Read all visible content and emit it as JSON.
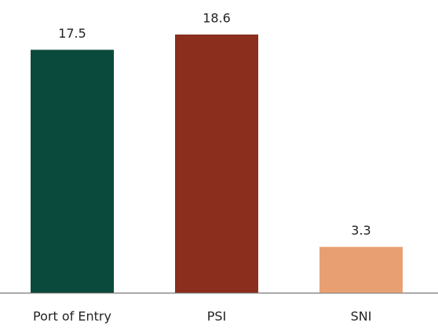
{
  "chart_data": {
    "type": "bar",
    "categories": [
      "Port of Entry",
      "PSI",
      "SNI"
    ],
    "values": [
      17.5,
      18.6,
      3.3
    ],
    "colors": [
      "#0a4a3c",
      "#8b2e1e",
      "#e8a073"
    ],
    "grid": false
  }
}
